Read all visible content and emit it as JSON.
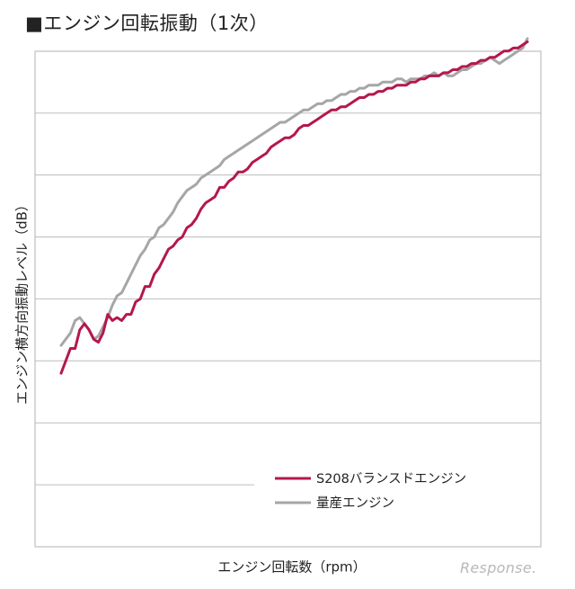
{
  "title": "■エンジン回転振動（1次）",
  "watermark": "Response.",
  "chart_data": {
    "type": "line",
    "xlabel": "エンジン回転数（rpm）",
    "ylabel": "エンジン横方向振動レベル（dB）",
    "x_ticks_labeled": false,
    "y_ticks_labeled": false,
    "grid": "horizontal",
    "ylim": [
      0,
      8
    ],
    "xlim": [
      0,
      100
    ],
    "legend_position": "lower-right",
    "series": [
      {
        "name": "S208バランスドエンジン",
        "color": "#b5174f",
        "x": [
          0,
          2,
          3,
          4,
          5,
          6,
          7,
          8,
          9,
          10,
          11,
          12,
          13,
          14,
          15,
          16,
          17,
          18,
          19,
          20,
          21,
          22,
          23,
          24,
          25,
          26,
          27,
          28,
          29,
          30,
          31,
          32,
          33,
          34,
          35,
          36,
          37,
          38,
          39,
          40,
          41,
          42,
          43,
          44,
          45,
          46,
          47,
          48,
          49,
          50,
          51,
          52,
          53,
          54,
          55,
          56,
          57,
          58,
          59,
          60,
          61,
          62,
          63,
          64,
          65,
          66,
          67,
          68,
          69,
          70,
          71,
          72,
          73,
          74,
          75,
          76,
          77,
          78,
          79,
          80,
          81,
          82,
          83,
          84,
          85,
          86,
          87,
          88,
          89,
          90,
          91,
          92,
          93,
          94,
          95,
          96,
          97,
          98,
          99,
          100
        ],
        "values": [
          2.8,
          3.2,
          3.2,
          3.5,
          3.6,
          3.5,
          3.35,
          3.3,
          3.45,
          3.75,
          3.65,
          3.7,
          3.65,
          3.75,
          3.75,
          3.95,
          4.0,
          4.2,
          4.2,
          4.4,
          4.5,
          4.65,
          4.8,
          4.85,
          4.95,
          5.0,
          5.15,
          5.2,
          5.3,
          5.45,
          5.55,
          5.6,
          5.65,
          5.8,
          5.8,
          5.9,
          5.95,
          6.05,
          6.05,
          6.1,
          6.2,
          6.25,
          6.3,
          6.35,
          6.45,
          6.5,
          6.55,
          6.6,
          6.6,
          6.65,
          6.75,
          6.8,
          6.8,
          6.85,
          6.9,
          6.95,
          7.0,
          7.05,
          7.05,
          7.1,
          7.1,
          7.15,
          7.2,
          7.25,
          7.25,
          7.3,
          7.3,
          7.35,
          7.35,
          7.4,
          7.4,
          7.45,
          7.45,
          7.45,
          7.5,
          7.5,
          7.55,
          7.55,
          7.6,
          7.6,
          7.6,
          7.65,
          7.65,
          7.7,
          7.7,
          7.75,
          7.75,
          7.8,
          7.8,
          7.85,
          7.85,
          7.9,
          7.9,
          7.95,
          8.0,
          8.0,
          8.05,
          8.05,
          8.1,
          8.15
        ]
      },
      {
        "name": "量産エンジン",
        "color": "#a6a6a6",
        "x": [
          0,
          2,
          3,
          4,
          5,
          6,
          7,
          8,
          9,
          10,
          11,
          12,
          13,
          14,
          15,
          16,
          17,
          18,
          19,
          20,
          21,
          22,
          23,
          24,
          25,
          26,
          27,
          28,
          29,
          30,
          31,
          32,
          33,
          34,
          35,
          36,
          37,
          38,
          39,
          40,
          41,
          42,
          43,
          44,
          45,
          46,
          47,
          48,
          49,
          50,
          51,
          52,
          53,
          54,
          55,
          56,
          57,
          58,
          59,
          60,
          61,
          62,
          63,
          64,
          65,
          66,
          67,
          68,
          69,
          70,
          71,
          72,
          73,
          74,
          75,
          76,
          77,
          78,
          79,
          80,
          81,
          82,
          83,
          84,
          85,
          86,
          87,
          88,
          89,
          90,
          91,
          92,
          93,
          94,
          95,
          96,
          97,
          98,
          99,
          100
        ],
        "values": [
          3.25,
          3.45,
          3.65,
          3.7,
          3.6,
          3.5,
          3.35,
          3.4,
          3.55,
          3.7,
          3.9,
          4.05,
          4.1,
          4.25,
          4.4,
          4.55,
          4.7,
          4.8,
          4.95,
          5.0,
          5.15,
          5.2,
          5.3,
          5.4,
          5.55,
          5.65,
          5.75,
          5.8,
          5.85,
          5.95,
          6.0,
          6.05,
          6.1,
          6.15,
          6.25,
          6.3,
          6.35,
          6.4,
          6.45,
          6.5,
          6.55,
          6.6,
          6.65,
          6.7,
          6.75,
          6.8,
          6.85,
          6.85,
          6.9,
          6.95,
          7.0,
          7.05,
          7.05,
          7.1,
          7.15,
          7.15,
          7.2,
          7.2,
          7.25,
          7.3,
          7.3,
          7.35,
          7.35,
          7.4,
          7.4,
          7.45,
          7.45,
          7.45,
          7.5,
          7.5,
          7.5,
          7.55,
          7.55,
          7.5,
          7.55,
          7.55,
          7.55,
          7.6,
          7.6,
          7.65,
          7.6,
          7.65,
          7.6,
          7.6,
          7.65,
          7.7,
          7.7,
          7.75,
          7.8,
          7.8,
          7.85,
          7.9,
          7.85,
          7.8,
          7.85,
          7.9,
          7.95,
          8.0,
          8.05,
          8.2
        ]
      }
    ]
  }
}
